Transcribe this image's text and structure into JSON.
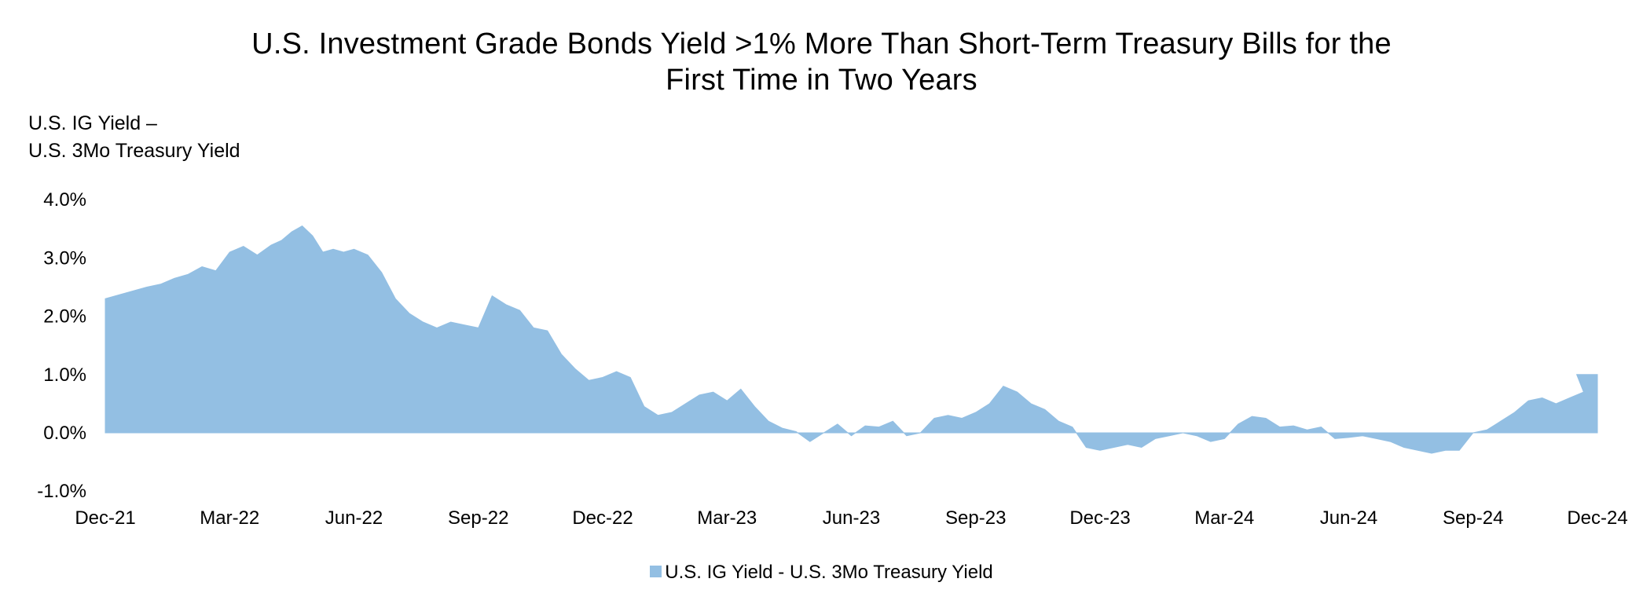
{
  "chart_data": {
    "type": "area",
    "title_lines": [
      "U.S. Investment Grade Bonds Yield >1% More Than Short-Term Treasury Bills for the",
      "First Time in Two Years"
    ],
    "ylabel_lines": [
      "U.S. IG Yield –",
      "U.S. 3Mo Treasury Yield"
    ],
    "xlabel": "",
    "y_ticks": [
      -1.0,
      0.0,
      1.0,
      2.0,
      3.0,
      4.0
    ],
    "y_tick_labels": [
      "-1.0%",
      "0.0%",
      "1.0%",
      "2.0%",
      "3.0%",
      "4.0%"
    ],
    "ylim": [
      -1.0,
      4.0
    ],
    "x_tick_labels": [
      "Dec-21",
      "Mar-22",
      "Jun-22",
      "Sep-22",
      "Dec-22",
      "Mar-23",
      "Jun-23",
      "Sep-23",
      "Dec-23",
      "Mar-24",
      "Jun-24",
      "Sep-24",
      "Dec-24"
    ],
    "x_range": [
      "Dec-21",
      "Dec-24"
    ],
    "grid": false,
    "legend_position": "bottom-center",
    "series": [
      {
        "name": "U.S. IG Yield - U.S. 3Mo Treasury Yield",
        "color": "#93bfe3",
        "points": [
          [
            "Dec-21",
            2.3
          ],
          [
            "Dec-21",
            2.4
          ],
          [
            "Jan-22",
            2.5
          ],
          [
            "Jan-22",
            2.55
          ],
          [
            "Jan-22",
            2.65
          ],
          [
            "Feb-22",
            2.72
          ],
          [
            "Feb-22",
            2.85
          ],
          [
            "Feb-22",
            2.78
          ],
          [
            "Mar-22",
            3.1
          ],
          [
            "Mar-22",
            3.2
          ],
          [
            "Mar-22",
            3.05
          ],
          [
            "Apr-22",
            3.22
          ],
          [
            "Apr-22",
            3.3
          ],
          [
            "Apr-22",
            3.45
          ],
          [
            "Apr-22",
            3.55
          ],
          [
            "May-22",
            3.38
          ],
          [
            "May-22",
            3.1
          ],
          [
            "May-22",
            3.15
          ],
          [
            "May-22",
            3.1
          ],
          [
            "Jun-22",
            3.15
          ],
          [
            "Jun-22",
            3.05
          ],
          [
            "Jun-22",
            2.75
          ],
          [
            "Jul-22",
            2.3
          ],
          [
            "Jul-22",
            2.05
          ],
          [
            "Jul-22",
            1.9
          ],
          [
            "Aug-22",
            1.8
          ],
          [
            "Aug-22",
            1.9
          ],
          [
            "Aug-22",
            1.85
          ],
          [
            "Sep-22",
            1.8
          ],
          [
            "Sep-22",
            2.35
          ],
          [
            "Sep-22",
            2.2
          ],
          [
            "Oct-22",
            2.1
          ],
          [
            "Oct-22",
            1.8
          ],
          [
            "Oct-22",
            1.75
          ],
          [
            "Nov-22",
            1.35
          ],
          [
            "Nov-22",
            1.1
          ],
          [
            "Nov-22",
            0.9
          ],
          [
            "Dec-22",
            0.95
          ],
          [
            "Dec-22",
            1.05
          ],
          [
            "Dec-22",
            0.95
          ],
          [
            "Jan-23",
            0.45
          ],
          [
            "Jan-23",
            0.3
          ],
          [
            "Jan-23",
            0.35
          ],
          [
            "Feb-23",
            0.5
          ],
          [
            "Feb-23",
            0.65
          ],
          [
            "Feb-23",
            0.7
          ],
          [
            "Mar-23",
            0.55
          ],
          [
            "Mar-23",
            0.75
          ],
          [
            "Mar-23",
            0.45
          ],
          [
            "Apr-23",
            0.2
          ],
          [
            "Apr-23",
            0.08
          ],
          [
            "Apr-23",
            0.02
          ],
          [
            "May-23",
            -0.15
          ],
          [
            "May-23",
            0.0
          ],
          [
            "May-23",
            0.15
          ],
          [
            "Jun-23",
            -0.05
          ],
          [
            "Jun-23",
            0.12
          ],
          [
            "Jun-23",
            0.1
          ],
          [
            "Jul-23",
            0.2
          ],
          [
            "Jul-23",
            -0.05
          ],
          [
            "Jul-23",
            0.0
          ],
          [
            "Aug-23",
            0.25
          ],
          [
            "Aug-23",
            0.3
          ],
          [
            "Aug-23",
            0.25
          ],
          [
            "Sep-23",
            0.35
          ],
          [
            "Sep-23",
            0.5
          ],
          [
            "Sep-23",
            0.8
          ],
          [
            "Oct-23",
            0.7
          ],
          [
            "Oct-23",
            0.5
          ],
          [
            "Oct-23",
            0.4
          ],
          [
            "Nov-23",
            0.2
          ],
          [
            "Nov-23",
            0.1
          ],
          [
            "Nov-23",
            -0.25
          ],
          [
            "Dec-23",
            -0.3
          ],
          [
            "Dec-23",
            -0.25
          ],
          [
            "Dec-23",
            -0.2
          ],
          [
            "Jan-24",
            -0.25
          ],
          [
            "Jan-24",
            -0.1
          ],
          [
            "Jan-24",
            -0.05
          ],
          [
            "Feb-24",
            0.0
          ],
          [
            "Feb-24",
            -0.05
          ],
          [
            "Feb-24",
            -0.15
          ],
          [
            "Mar-24",
            -0.1
          ],
          [
            "Mar-24",
            0.15
          ],
          [
            "Mar-24",
            0.28
          ],
          [
            "Apr-24",
            0.25
          ],
          [
            "Apr-24",
            0.1
          ],
          [
            "Apr-24",
            0.12
          ],
          [
            "May-24",
            0.05
          ],
          [
            "May-24",
            0.1
          ],
          [
            "May-24",
            -0.1
          ],
          [
            "Jun-24",
            -0.08
          ],
          [
            "Jun-24",
            -0.05
          ],
          [
            "Jun-24",
            -0.1
          ],
          [
            "Jul-24",
            -0.15
          ],
          [
            "Jul-24",
            -0.25
          ],
          [
            "Jul-24",
            -0.3
          ],
          [
            "Aug-24",
            -0.35
          ],
          [
            "Aug-24",
            -0.3
          ],
          [
            "Aug-24",
            -0.3
          ],
          [
            "Sep-24",
            0.0
          ],
          [
            "Sep-24",
            0.05
          ],
          [
            "Sep-24",
            0.2
          ],
          [
            "Oct-24",
            0.35
          ],
          [
            "Oct-24",
            0.55
          ],
          [
            "Oct-24",
            0.6
          ],
          [
            "Nov-24",
            0.5
          ],
          [
            "Nov-24",
            0.6
          ],
          [
            "Nov-24",
            0.7
          ],
          [
            "Dec-24",
            1.0
          ],
          [
            "Dec-24",
            1.0
          ]
        ]
      }
    ]
  },
  "legend": {
    "label": "U.S. IG Yield - U.S. 3Mo Treasury Yield",
    "swatch_color": "#93bfe3"
  }
}
